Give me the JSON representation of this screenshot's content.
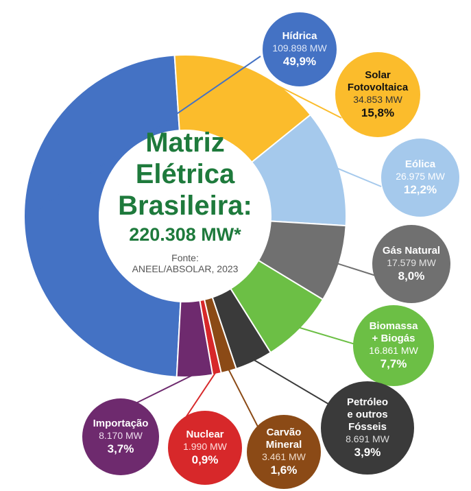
{
  "chart_data": {
    "type": "pie",
    "donut": true,
    "title_lines": [
      "Matriz",
      "Elétrica",
      "Brasileira:"
    ],
    "total": "220.308 MW*",
    "source_lines": [
      "Fonte:",
      "ANEEL/ABSOLAR, 2023"
    ],
    "slices": [
      {
        "name": "Hídrica",
        "name_lines": [
          "Hídrica"
        ],
        "mw": "109.898 MW",
        "value": 49.9,
        "percent": "49,9%",
        "color": "#4472c4",
        "bubble_text": "#ffffff",
        "mw_text": "#dde6f7"
      },
      {
        "name": "Solar Fotovoltaica",
        "name_lines": [
          "Solar",
          "Fotovoltaica"
        ],
        "mw": "34.853 MW",
        "value": 15.8,
        "percent": "15,8%",
        "color": "#fbbc2c",
        "bubble_text": "#111111",
        "mw_text": "#333333"
      },
      {
        "name": "Eólica",
        "name_lines": [
          "Eólica"
        ],
        "mw": "26.975 MW",
        "value": 12.2,
        "percent": "12,2%",
        "color": "#a5c9ec",
        "bubble_text": "#ffffff",
        "mw_text": "#ffffff"
      },
      {
        "name": "Gás Natural",
        "name_lines": [
          "Gás Natural"
        ],
        "mw": "17.579 MW",
        "value": 8.0,
        "percent": "8,0%",
        "color": "#707070",
        "bubble_text": "#ffffff",
        "mw_text": "#e4e4e4"
      },
      {
        "name": "Biomassa + Biogás",
        "name_lines": [
          "Biomassa",
          "+ Biogás"
        ],
        "mw": "16.861 MW",
        "value": 7.7,
        "percent": "7,7%",
        "color": "#6cbf45",
        "bubble_text": "#ffffff",
        "mw_text": "#ffffff"
      },
      {
        "name": "Petróleo e outros Fósseis",
        "name_lines": [
          "Petróleo",
          "e outros",
          "Fósseis"
        ],
        "mw": "8.691 MW",
        "value": 3.9,
        "percent": "3,9%",
        "color": "#3a3a3a",
        "bubble_text": "#ffffff",
        "mw_text": "#dddddd"
      },
      {
        "name": "Carvão Mineral",
        "name_lines": [
          "Carvão",
          "Mineral"
        ],
        "mw": "3.461 MW",
        "value": 1.6,
        "percent": "1,6%",
        "color": "#8b4a16",
        "bubble_text": "#ffffff",
        "mw_text": "#f0dccb"
      },
      {
        "name": "Nuclear",
        "name_lines": [
          "Nuclear"
        ],
        "mw": "1.990 MW",
        "value": 0.9,
        "percent": "0,9%",
        "color": "#d7282a",
        "bubble_text": "#ffffff",
        "mw_text": "#ffe0e0"
      },
      {
        "name": "Importação",
        "name_lines": [
          "Importação"
        ],
        "mw": "8.170 MW",
        "value": 3.7,
        "percent": "3,7%",
        "color": "#6e2a6e",
        "bubble_text": "#ffffff",
        "mw_text": "#eeddee"
      }
    ]
  }
}
